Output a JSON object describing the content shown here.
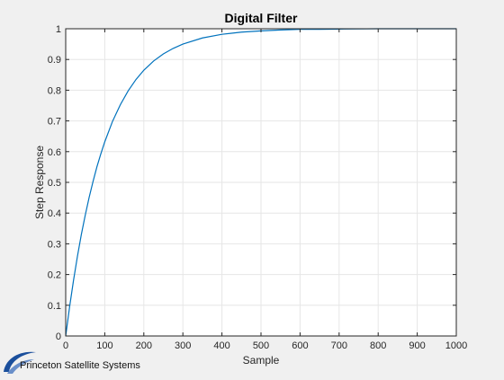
{
  "branding": {
    "name": "Princeton Satellite Systems",
    "color": "#1b4f9c"
  },
  "chart_data": {
    "type": "line",
    "title": "Digital Filter",
    "xlabel": "Sample",
    "ylabel": "Step Response",
    "xlim": [
      0,
      1000
    ],
    "ylim": [
      0,
      1
    ],
    "xticks": [
      0,
      100,
      200,
      300,
      400,
      500,
      600,
      700,
      800,
      900,
      1000
    ],
    "yticks": [
      0,
      0.1,
      0.2,
      0.3,
      0.4,
      0.5,
      0.6,
      0.7,
      0.8,
      0.9,
      1
    ],
    "xtick_labels": [
      "0",
      "100",
      "200",
      "300",
      "400",
      "500",
      "600",
      "700",
      "800",
      "900",
      "1000"
    ],
    "ytick_labels": [
      "0",
      "0.1",
      "0.2",
      "0.3",
      "0.4",
      "0.5",
      "0.6",
      "0.7",
      "0.8",
      "0.9",
      "1"
    ],
    "grid": true,
    "line_color": "#0072bd",
    "series": [
      {
        "x": [
          0,
          10,
          20,
          30,
          40,
          50,
          60,
          70,
          80,
          90,
          100,
          120,
          140,
          160,
          180,
          200,
          225,
          250,
          275,
          300,
          350,
          400,
          450,
          500,
          550,
          600,
          650,
          700,
          800,
          900,
          1000
        ],
        "y": [
          0,
          0.095,
          0.181,
          0.259,
          0.33,
          0.393,
          0.451,
          0.503,
          0.551,
          0.593,
          0.632,
          0.699,
          0.753,
          0.798,
          0.835,
          0.865,
          0.895,
          0.918,
          0.936,
          0.95,
          0.97,
          0.982,
          0.989,
          0.993,
          0.996,
          0.998,
          0.998,
          0.999,
          1.0,
          1.0,
          1.0
        ]
      }
    ]
  }
}
